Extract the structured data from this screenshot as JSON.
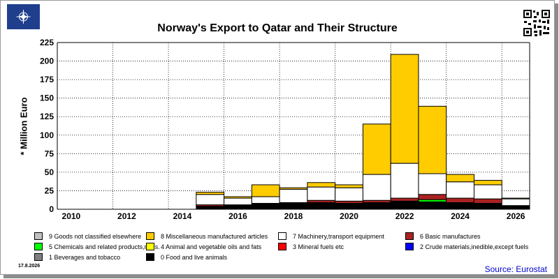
{
  "header": {
    "logo_icon": "nato-compass-logo-icon",
    "qr_icon": "qr-code-icon"
  },
  "chart_data": {
    "type": "bar",
    "stacked": true,
    "title": "Norway's Export to Qatar and Their Structure",
    "ylabel": "* Million Euro",
    "xlabel": "",
    "x": [
      2010,
      2011,
      2012,
      2013,
      2014,
      2015,
      2016,
      2017,
      2018,
      2019,
      2020,
      2021,
      2022,
      2023,
      2024,
      2025,
      2026
    ],
    "x_tick_labels": [
      "2010",
      "2012",
      "2014",
      "2016",
      "2018",
      "2020",
      "2022",
      "2024",
      "2026"
    ],
    "ylim": [
      0,
      225
    ],
    "y_ticks": [
      0,
      25,
      50,
      75,
      100,
      125,
      150,
      175,
      200,
      225
    ],
    "grid": true,
    "legend_position": "bottom",
    "series": [
      {
        "name": "0 Food and live animals",
        "color": "#000000",
        "values": [
          0,
          0,
          0,
          0,
          0,
          4,
          5,
          7,
          8,
          9,
          8,
          9,
          10,
          10,
          9,
          8,
          4
        ]
      },
      {
        "name": "1 Beverages and tobacco",
        "color": "#808080",
        "values": [
          0,
          0,
          0,
          0,
          0,
          0,
          0,
          0,
          0,
          0,
          0,
          0,
          0,
          0,
          0,
          0,
          0
        ]
      },
      {
        "name": "2 Crude materials,inedible,except fuels",
        "color": "#0000ff",
        "values": [
          0,
          0,
          0,
          0,
          0,
          0,
          0,
          0,
          0,
          0,
          0,
          0,
          0,
          0,
          0,
          0,
          0
        ]
      },
      {
        "name": "3 Mineral fuels etc",
        "color": "#ff0000",
        "values": [
          0,
          0,
          0,
          0,
          0,
          0,
          0,
          0,
          0,
          0,
          0,
          0,
          0,
          0,
          0,
          0,
          0
        ]
      },
      {
        "name": "4 Animal and vegetable oils and fats",
        "color": "#ffff00",
        "values": [
          0,
          0,
          0,
          0,
          0,
          0,
          0,
          0,
          0,
          0,
          0,
          0,
          0,
          0,
          0,
          0,
          0
        ]
      },
      {
        "name": "5 Chemicals and related products,n.e.s.",
        "color": "#00ff00",
        "values": [
          0,
          0,
          0,
          0,
          0,
          0,
          0,
          0,
          0,
          0,
          0,
          0,
          1,
          3,
          0,
          0,
          0
        ]
      },
      {
        "name": "6 Basic manufactures",
        "color": "#aa2222",
        "values": [
          0,
          0,
          0,
          0,
          0,
          2,
          1,
          1,
          1,
          3,
          3,
          3,
          4,
          7,
          6,
          6,
          1
        ]
      },
      {
        "name": "7 Machinery,transport equipment",
        "color": "#ffffff",
        "values": [
          0,
          0,
          0,
          0,
          0,
          14,
          9,
          9,
          18,
          18,
          18,
          35,
          47,
          28,
          22,
          19,
          9
        ]
      },
      {
        "name": "8 Miscellaneous manufactured articles",
        "color": "#ffcc00",
        "values": [
          0,
          0,
          0,
          0,
          0,
          3,
          2,
          16,
          2,
          6,
          4,
          68,
          147,
          91,
          10,
          6,
          1
        ]
      },
      {
        "name": "9 Goods not classified elsewhere",
        "color": "#c0c0c0",
        "values": [
          0,
          0,
          0,
          0,
          0,
          0,
          0,
          0,
          0,
          0,
          0,
          0,
          0,
          0,
          0,
          0,
          0
        ]
      }
    ],
    "legend_order": [
      9,
      8,
      7,
      6,
      5,
      4,
      3,
      2,
      1,
      0
    ]
  },
  "footer": {
    "date": "17.8.2026",
    "source": "Source: Eurostat"
  }
}
